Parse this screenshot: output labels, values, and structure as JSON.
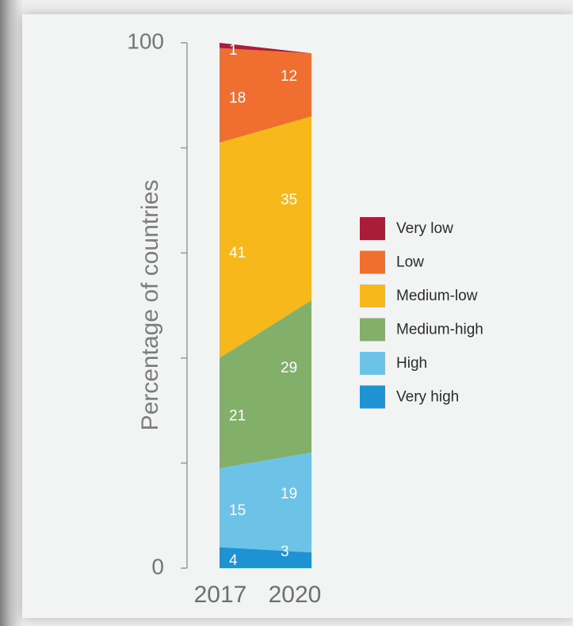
{
  "chart_data": {
    "type": "area",
    "subtype": "stacked-percent",
    "ylabel": "Percentage of countries",
    "ylim": [
      0,
      100
    ],
    "y_tick_labels": [
      "100",
      "0"
    ],
    "categories": [
      "2017",
      "2020"
    ],
    "series": [
      {
        "name": "Very high",
        "color": "#1e93d3",
        "values": [
          4,
          3
        ]
      },
      {
        "name": "High",
        "color": "#6cc3e7",
        "values": [
          15,
          19
        ]
      },
      {
        "name": "Medium-high",
        "color": "#82b06a",
        "values": [
          21,
          29
        ]
      },
      {
        "name": "Medium-low",
        "color": "#f6b81b",
        "values": [
          41,
          35
        ]
      },
      {
        "name": "Low",
        "color": "#f06e2f",
        "values": [
          18,
          12
        ]
      },
      {
        "name": "Very low",
        "color": "#a91d3a",
        "values": [
          1,
          0
        ]
      }
    ],
    "legend": {
      "position": "right",
      "order": [
        "Very low",
        "Low",
        "Medium-low",
        "Medium-high",
        "High",
        "Very high"
      ]
    },
    "grid": false
  }
}
